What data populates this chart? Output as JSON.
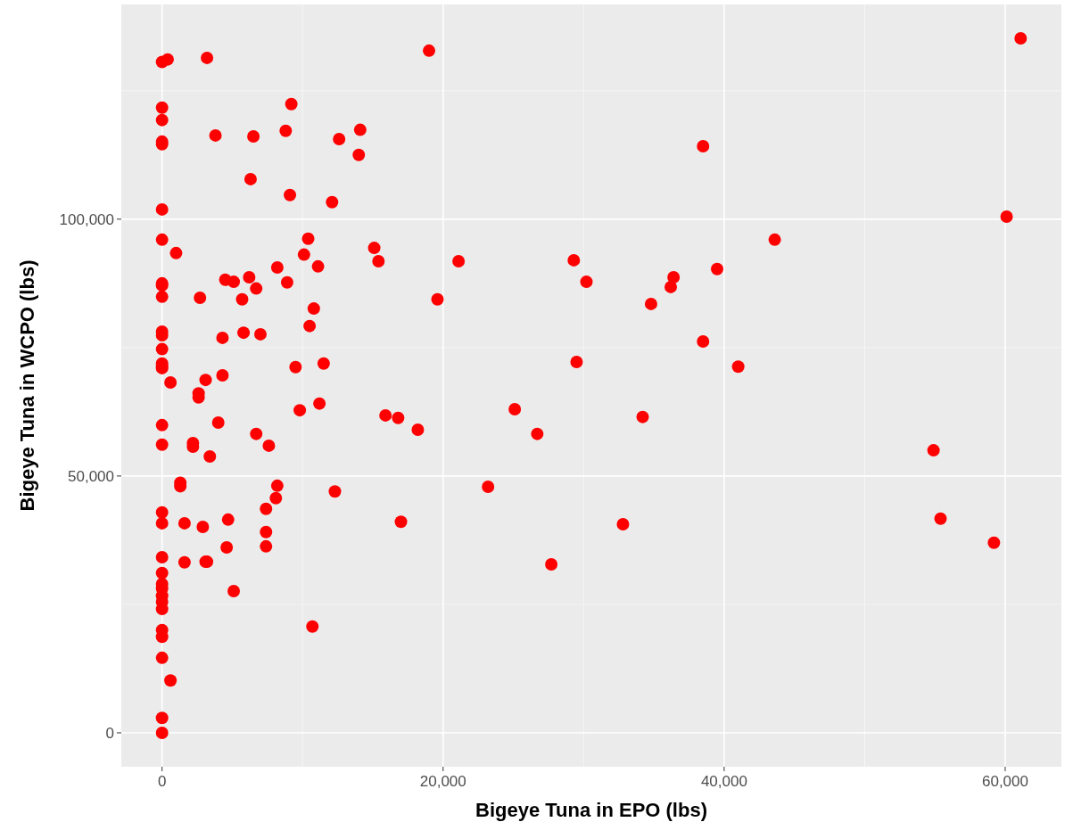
{
  "chart_data": {
    "type": "scatter",
    "xlabel": "Bigeye Tuna in EPO (lbs)",
    "ylabel": "Bigeye Tuna in WCPO (lbs)",
    "x": [
      0,
      0,
      0,
      0,
      0,
      0,
      0,
      0,
      0,
      0,
      0,
      0,
      0,
      0,
      0,
      0,
      0,
      0,
      0,
      0,
      0,
      0,
      0,
      0,
      0,
      0,
      0,
      0,
      0,
      0,
      0,
      0,
      3200,
      400,
      600,
      600,
      1000,
      1600,
      1600,
      1300,
      1300,
      2200,
      2200,
      2600,
      2600,
      2700,
      2900,
      3100,
      3200,
      3100,
      3400,
      3800,
      4000,
      4300,
      4300,
      4500,
      4700,
      4600,
      5100,
      5100,
      5700,
      5800,
      6200,
      6300,
      6500,
      6700,
      6700,
      7000,
      7400,
      7400,
      7400,
      7600,
      8100,
      8200,
      8200,
      8800,
      8900,
      9200,
      9100,
      9500,
      9800,
      10100,
      10400,
      10500,
      10700,
      10800,
      11100,
      11200,
      11500,
      12100,
      12300,
      12600,
      14000,
      14100,
      15100,
      15400,
      15900,
      16800,
      17000,
      18200,
      19000,
      19600,
      21100,
      23200,
      25100,
      26700,
      27700,
      29300,
      29500,
      30200,
      32800,
      34200,
      34800,
      36200,
      36400,
      38500,
      38500,
      39500,
      41000,
      43600,
      54900,
      55400,
      59200,
      60100,
      61100
    ],
    "values": [
      130600,
      121700,
      119300,
      115100,
      114600,
      101900,
      96000,
      87500,
      87100,
      84900,
      78100,
      77400,
      74700,
      71900,
      71300,
      71000,
      59900,
      56100,
      42900,
      40800,
      34200,
      31100,
      29000,
      28100,
      26700,
      25500,
      24100,
      20000,
      18700,
      14600,
      2900,
      0,
      131400,
      131100,
      10200,
      68200,
      93400,
      40800,
      33200,
      48000,
      48700,
      56400,
      55700,
      66100,
      65300,
      84700,
      40100,
      33300,
      33300,
      68700,
      53800,
      116300,
      60400,
      69600,
      76900,
      88200,
      41500,
      36100,
      87800,
      27600,
      84400,
      77900,
      88700,
      107800,
      116100,
      86500,
      58200,
      77600,
      43600,
      39100,
      36300,
      55900,
      45700,
      48100,
      90600,
      117200,
      87700,
      122400,
      104700,
      71200,
      62800,
      93100,
      96200,
      79200,
      20700,
      82600,
      90800,
      64100,
      71900,
      103300,
      47000,
      115600,
      112500,
      117400,
      94400,
      91800,
      61800,
      61300,
      41100,
      59000,
      132800,
      84400,
      91800,
      47900,
      63000,
      58200,
      32800,
      92000,
      72200,
      87800,
      40600,
      61500,
      83500,
      86800,
      88700,
      114200,
      76200,
      90300,
      71300,
      96000,
      55000,
      41700,
      37000,
      100500,
      135200
    ],
    "color": "#ff0000",
    "marker": "circle",
    "grid": true,
    "xlim": [
      -2900,
      64000
    ],
    "ylim": [
      -6600,
      141800
    ],
    "xticks": [
      {
        "value": 0,
        "label": "0"
      },
      {
        "value": 20000,
        "label": "20,000"
      },
      {
        "value": 40000,
        "label": "40,000"
      },
      {
        "value": 60000,
        "label": "60,000"
      }
    ],
    "yticks": [
      {
        "value": 0,
        "label": "0"
      },
      {
        "value": 50000,
        "label": "50,000"
      },
      {
        "value": 100000,
        "label": "100,000"
      }
    ]
  }
}
